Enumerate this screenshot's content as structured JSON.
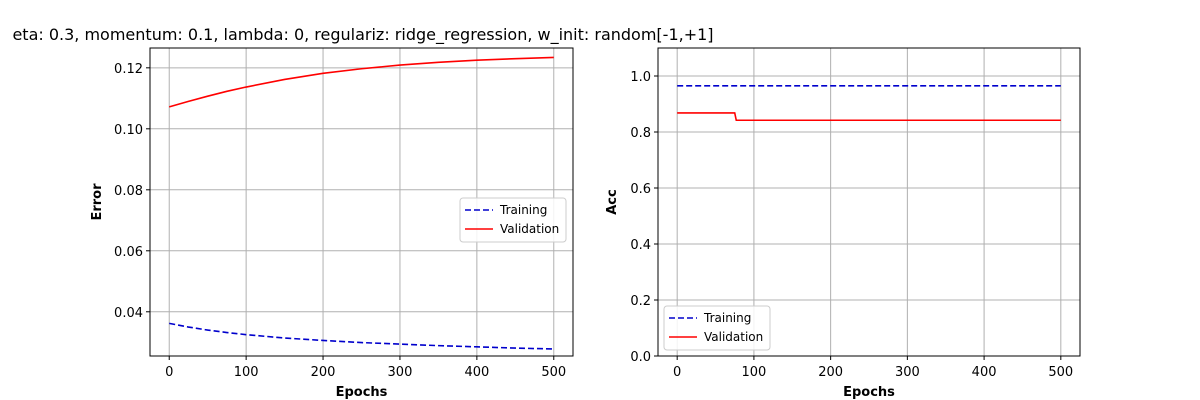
{
  "title": "eta: 0.3, momentum: 0.1, lambda: 0, regulariz: ridge_regression, w_init: random[-1,+1]",
  "colors": {
    "training": "#0000cc",
    "validation": "#ff0000"
  },
  "chart_data": [
    {
      "type": "line",
      "xlabel": "Epochs",
      "ylabel": "Error",
      "xlim": [
        -25,
        525
      ],
      "ylim": [
        0.0255,
        0.1265
      ],
      "xticks": [
        0,
        100,
        200,
        300,
        400,
        500
      ],
      "yticks": [
        0.04,
        0.06,
        0.08,
        0.1,
        0.12
      ],
      "ytick_labels": [
        "0.04",
        "0.06",
        "0.08",
        "0.10",
        "0.12"
      ],
      "grid": true,
      "legend_position": "center-right",
      "series": [
        {
          "name": "Training",
          "style": "dashed",
          "x": [
            0,
            25,
            50,
            75,
            100,
            150,
            200,
            250,
            300,
            350,
            400,
            450,
            500
          ],
          "y": [
            0.0362,
            0.035,
            0.034,
            0.0332,
            0.0325,
            0.0314,
            0.0306,
            0.0299,
            0.0294,
            0.0289,
            0.0285,
            0.0281,
            0.0278
          ]
        },
        {
          "name": "Validation",
          "style": "solid",
          "x": [
            0,
            25,
            50,
            75,
            100,
            150,
            200,
            250,
            300,
            350,
            400,
            450,
            500
          ],
          "y": [
            0.1072,
            0.109,
            0.1107,
            0.1123,
            0.1137,
            0.1162,
            0.1182,
            0.1197,
            0.1209,
            0.1218,
            0.1225,
            0.123,
            0.1234
          ]
        }
      ]
    },
    {
      "type": "line",
      "xlabel": "Epochs",
      "ylabel": "Acc",
      "xlim": [
        -25,
        525
      ],
      "ylim": [
        0.0,
        1.1
      ],
      "xticks": [
        0,
        100,
        200,
        300,
        400,
        500
      ],
      "yticks": [
        0.0,
        0.2,
        0.4,
        0.6,
        0.8,
        1.0
      ],
      "ytick_labels": [
        "0.0",
        "0.2",
        "0.4",
        "0.6",
        "0.8",
        "1.0"
      ],
      "grid": true,
      "legend_position": "lower-left",
      "series": [
        {
          "name": "Training",
          "style": "dashed",
          "x": [
            0,
            500
          ],
          "y": [
            0.965,
            0.965
          ]
        },
        {
          "name": "Validation",
          "style": "solid",
          "x": [
            0,
            75,
            77,
            500
          ],
          "y": [
            0.868,
            0.868,
            0.842,
            0.842
          ]
        }
      ]
    }
  ]
}
